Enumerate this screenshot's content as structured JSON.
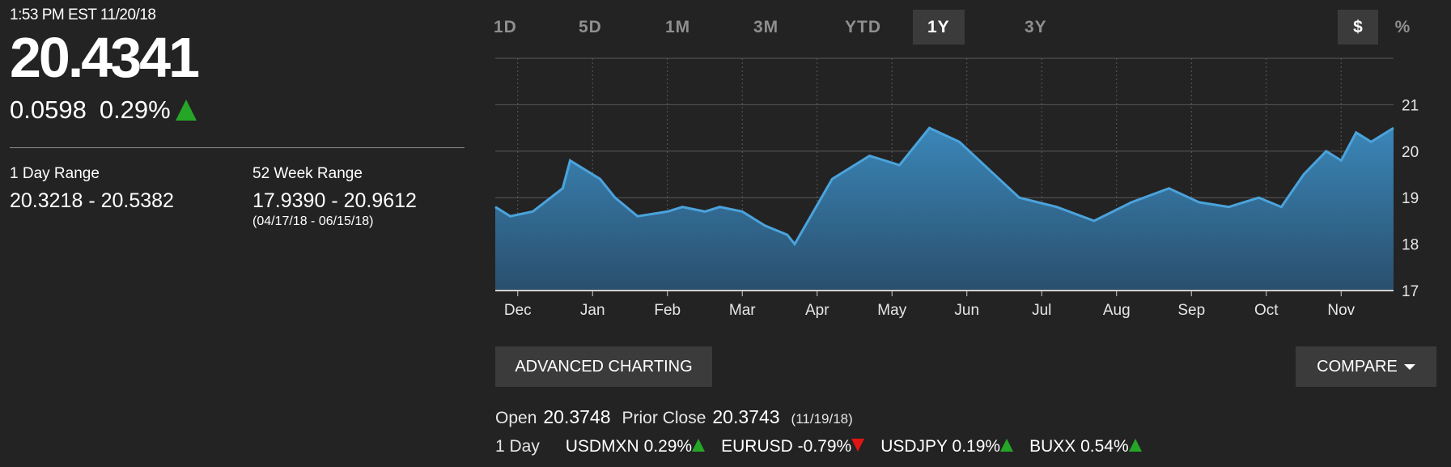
{
  "quote": {
    "timestamp": "1:53 PM EST 11/20/18",
    "price": "20.4341",
    "change": "0.0598",
    "change_pct": "0.29%",
    "direction": "up"
  },
  "ranges": {
    "day_label": "1 Day Range",
    "day_value": "20.3218 - 20.5382",
    "week52_label": "52 Week Range",
    "week52_value": "17.9390 - 20.9612",
    "week52_dates": "(04/17/18 - 06/15/18)"
  },
  "periods": [
    "1D",
    "5D",
    "1M",
    "3M",
    "YTD",
    "1Y",
    "3Y"
  ],
  "active_period": "1Y",
  "units": {
    "dollar": "$",
    "percent": "%",
    "active": "$"
  },
  "buttons": {
    "advanced": "ADVANCED CHARTING",
    "compare": "COMPARE"
  },
  "stats": {
    "open_label": "Open",
    "open_value": "20.3748",
    "prior_label": "Prior Close",
    "prior_value": "20.3743",
    "prior_date": "(11/19/18)"
  },
  "day_row": {
    "label": "1 Day",
    "tickers": [
      {
        "name": "USDMXN",
        "pct": "0.29%",
        "dir": "up"
      },
      {
        "name": "EURUSD",
        "pct": "-0.79%",
        "dir": "down"
      },
      {
        "name": "USDJPY",
        "pct": "0.19%",
        "dir": "up"
      },
      {
        "name": "BUXX",
        "pct": "0.54%",
        "dir": "up"
      }
    ]
  },
  "colors": {
    "line": "#4ba3dc",
    "fill_top": "#3a86b8",
    "fill_bottom": "#2a4f6d",
    "up": "#26a626",
    "down": "#e01515"
  },
  "chart_data": {
    "type": "area",
    "x_tick_labels": [
      "Dec",
      "Jan",
      "Feb",
      "Mar",
      "Apr",
      "May",
      "Jun",
      "Jul",
      "Aug",
      "Sep",
      "Oct",
      "Nov"
    ],
    "y_ticks": [
      17,
      18,
      19,
      20,
      21
    ],
    "ylim": [
      17,
      22
    ],
    "y_axis_side": "right",
    "grid": true,
    "x": [
      0,
      0.2,
      0.5,
      0.9,
      1.0,
      1.4,
      1.6,
      1.9,
      2.3,
      2.5,
      2.8,
      3.0,
      3.3,
      3.6,
      3.9,
      4.0,
      4.5,
      5.0,
      5.4,
      5.8,
      6.2,
      6.6,
      7.0,
      7.5,
      8.0,
      8.5,
      9.0,
      9.4,
      9.8,
      10.2,
      10.5,
      10.8,
      11.1,
      11.3,
      11.5,
      11.7,
      12.0
    ],
    "y": [
      18.8,
      18.6,
      18.7,
      19.2,
      19.8,
      19.4,
      19.0,
      18.6,
      18.7,
      18.8,
      18.7,
      18.8,
      18.7,
      18.4,
      18.2,
      18.0,
      19.4,
      19.9,
      19.7,
      20.5,
      20.2,
      19.6,
      19.0,
      18.8,
      18.5,
      18.9,
      19.2,
      18.9,
      18.8,
      19.0,
      18.8,
      19.5,
      20.0,
      19.8,
      20.4,
      20.2,
      20.5
    ]
  }
}
